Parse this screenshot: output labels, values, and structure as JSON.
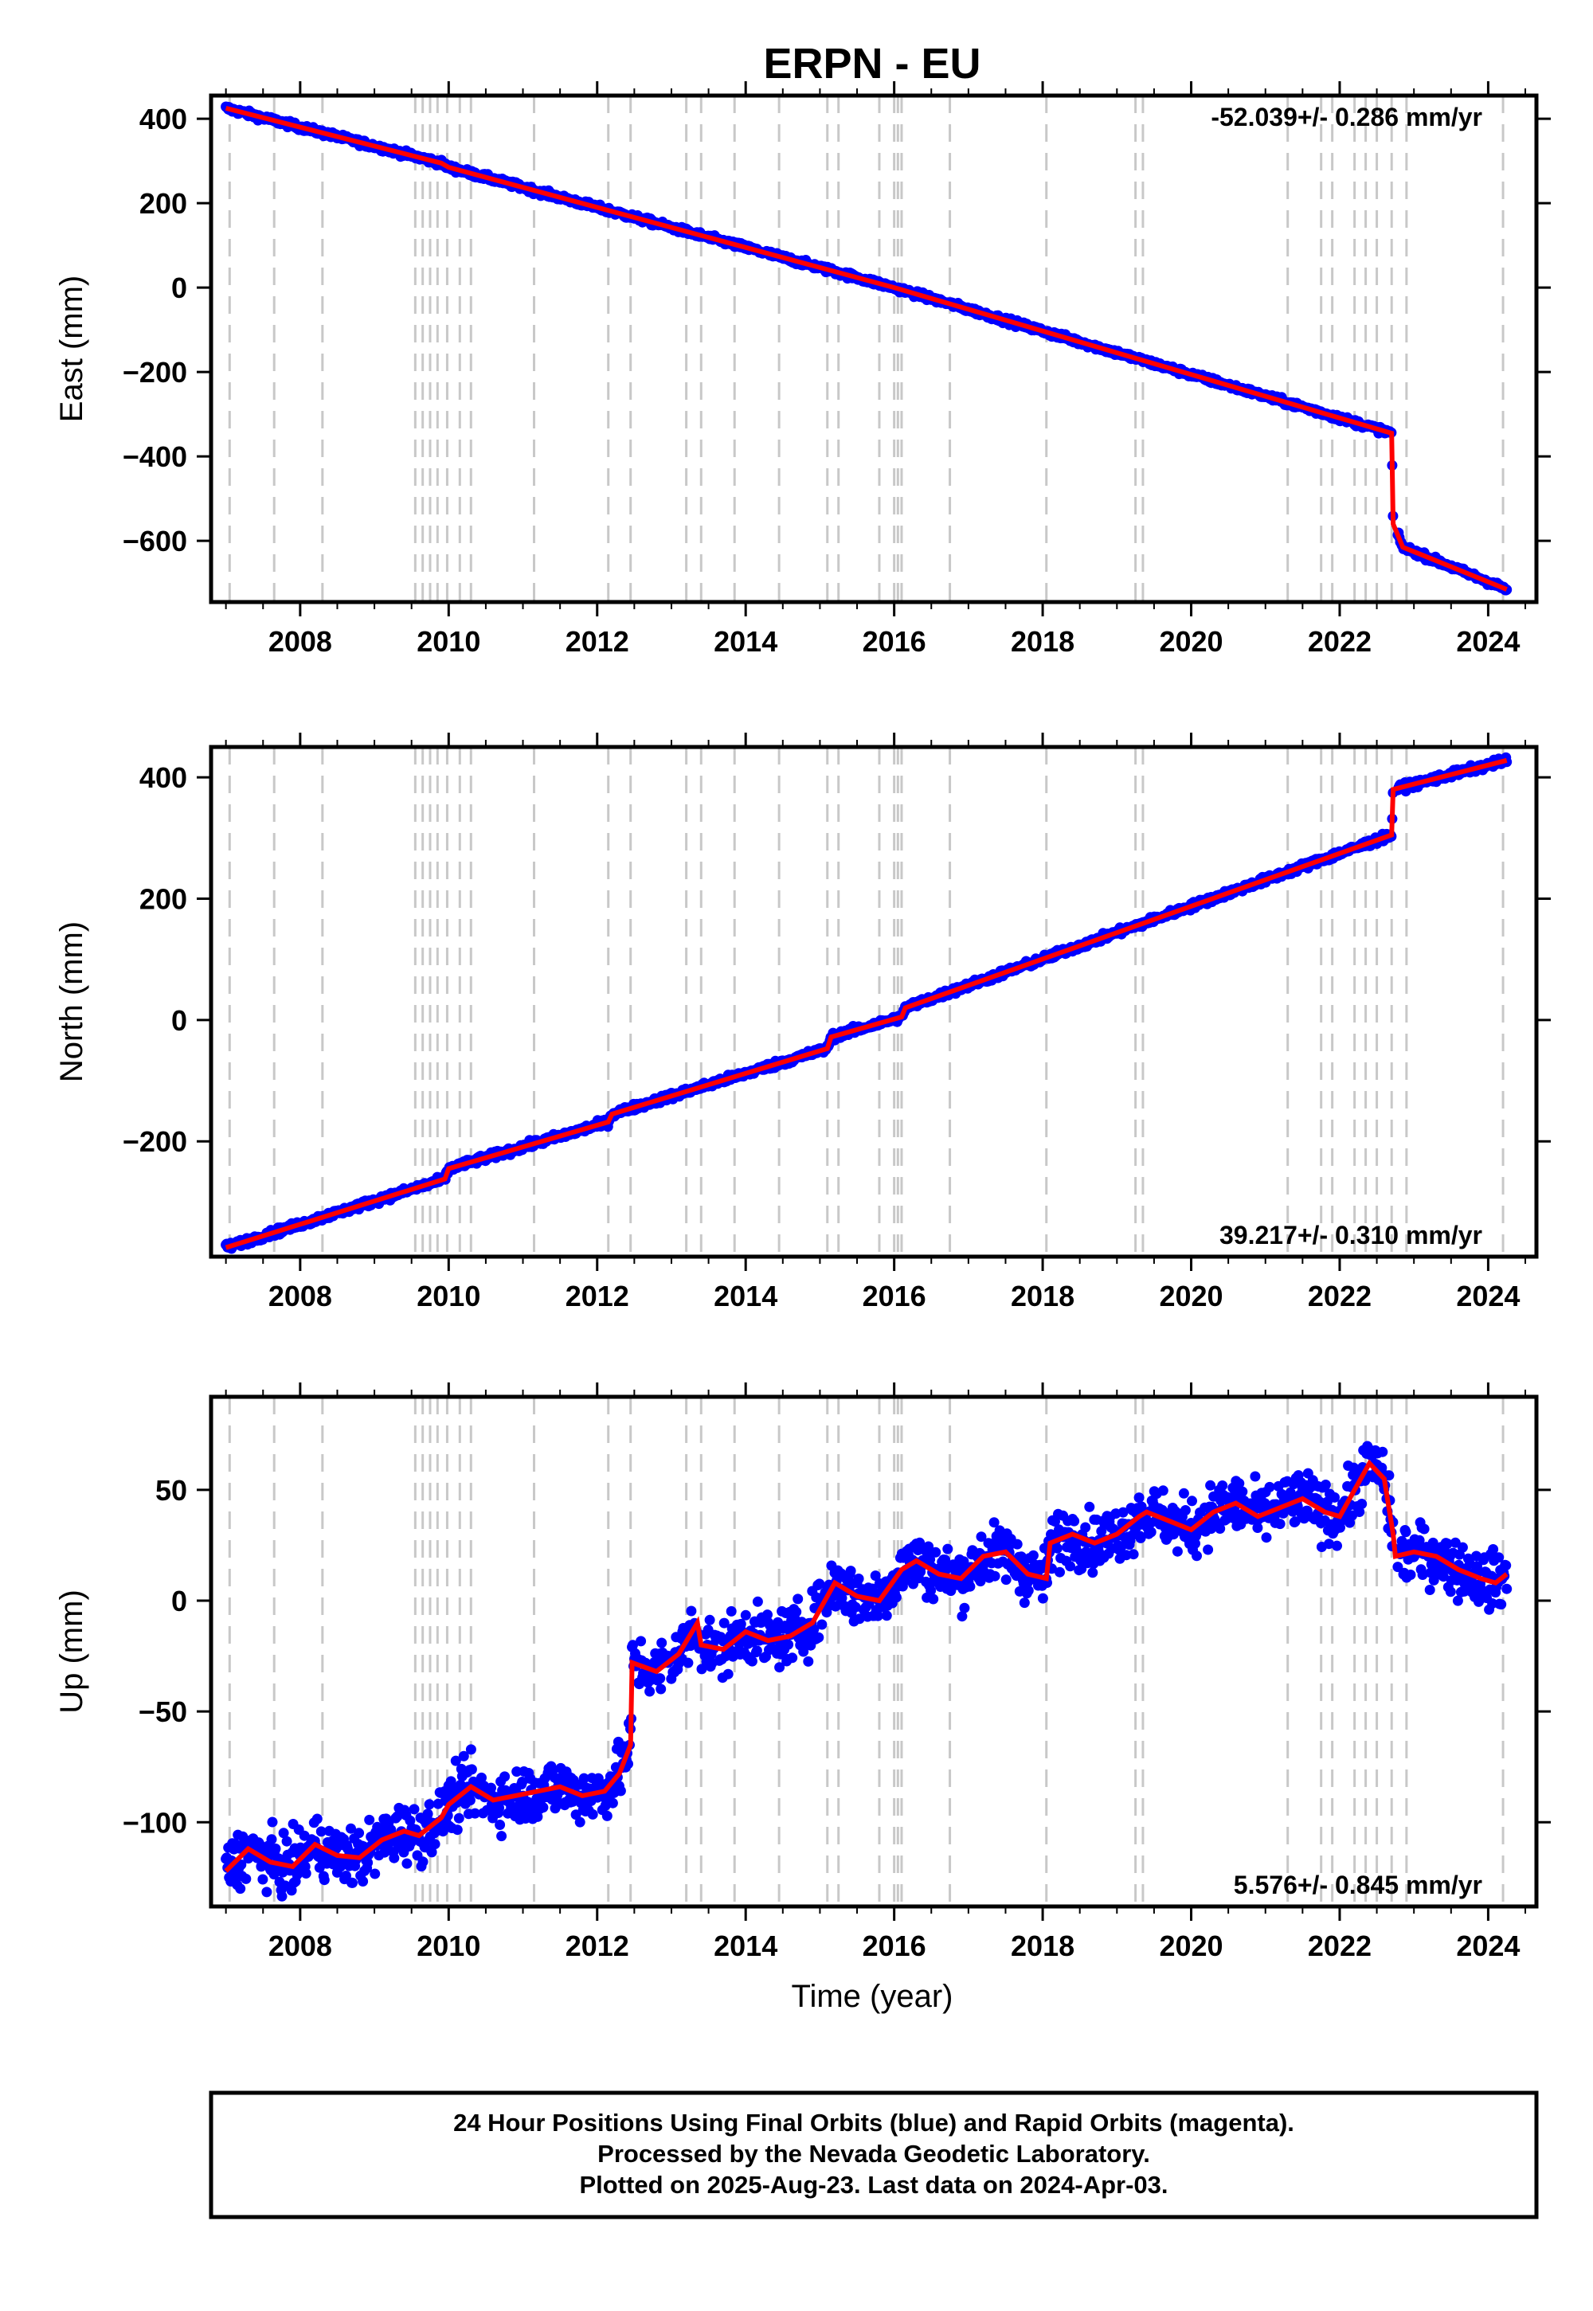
{
  "title": "ERPN - EU",
  "colors": {
    "final_orbits": "#0000ff",
    "model": "#ff0000",
    "events": "#c8c8c8",
    "frame": "#000000"
  },
  "chart_data": [
    {
      "type": "scatter",
      "panel": "east",
      "ylabel": "East (mm)",
      "xlabel": "",
      "xlim": [
        2006.8,
        2024.65
      ],
      "ylim": [
        -745,
        455
      ],
      "x_ticks": [
        2008,
        2010,
        2012,
        2014,
        2016,
        2018,
        2020,
        2022,
        2024
      ],
      "y_ticks": [
        400,
        200,
        0,
        -200,
        -400,
        -600
      ],
      "y_tick_labels": [
        "400",
        "200",
        "0",
        "−200",
        "−400",
        "−600"
      ],
      "rate_label": "-52.039+/- 0.286 mm/yr",
      "rate_label_position": "top-right",
      "series": [
        {
          "marker": "points",
          "color": "#0000ff",
          "x_range": [
            2007.0,
            2024.25
          ],
          "scatter_mm": 5
        },
        {
          "marker": "line",
          "color": "#ff0000",
          "x": [
            2007.0,
            2009.9,
            2010.0,
            2016.0,
            2022.7,
            2022.72,
            2022.85,
            2024.25
          ],
          "y": [
            425,
            295,
            285,
            0,
            -345,
            -560,
            -615,
            -715
          ]
        }
      ]
    },
    {
      "type": "scatter",
      "panel": "north",
      "ylabel": "North (mm)",
      "xlabel": "",
      "xlim": [
        2006.8,
        2024.65
      ],
      "ylim": [
        -390,
        450
      ],
      "x_ticks": [
        2008,
        2010,
        2012,
        2014,
        2016,
        2018,
        2020,
        2022,
        2024
      ],
      "y_ticks": [
        400,
        200,
        0,
        -200
      ],
      "y_tick_labels": [
        "400",
        "200",
        "0",
        "−200"
      ],
      "rate_label": "39.217+/- 0.310 mm/yr",
      "rate_label_position": "bottom-right",
      "series": [
        {
          "marker": "points",
          "color": "#0000ff",
          "x_range": [
            2007.0,
            2024.25
          ],
          "scatter_mm": 4
        },
        {
          "marker": "line",
          "color": "#ff0000",
          "x": [
            2007.0,
            2009.95,
            2010.0,
            2012.15,
            2012.2,
            2015.1,
            2015.15,
            2016.1,
            2016.15,
            2022.7,
            2022.72,
            2024.25
          ],
          "y": [
            -375,
            -262,
            -245,
            -168,
            -155,
            -47,
            -28,
            5,
            20,
            305,
            380,
            428
          ]
        }
      ]
    },
    {
      "type": "scatter",
      "panel": "up",
      "ylabel": "Up (mm)",
      "xlabel": "Time (year)",
      "xlim": [
        2006.8,
        2024.65
      ],
      "ylim": [
        -138,
        92
      ],
      "x_ticks": [
        2008,
        2010,
        2012,
        2014,
        2016,
        2018,
        2020,
        2022,
        2024
      ],
      "y_ticks": [
        50,
        0,
        -50,
        -100
      ],
      "y_tick_labels": [
        "50",
        "0",
        "−50",
        "−100"
      ],
      "rate_label": "5.576+/- 0.845 mm/yr",
      "rate_label_position": "bottom-right",
      "series": [
        {
          "marker": "points",
          "color": "#0000ff",
          "x_range": [
            2007.0,
            2024.25
          ],
          "scatter_mm": 9
        },
        {
          "marker": "line",
          "color": "#ff0000",
          "x": [
            2007.0,
            2007.3,
            2007.6,
            2007.9,
            2008.2,
            2008.5,
            2008.8,
            2009.1,
            2009.4,
            2009.6,
            2009.9,
            2010.0,
            2010.3,
            2010.6,
            2010.9,
            2011.2,
            2011.5,
            2011.8,
            2012.1,
            2012.3,
            2012.45,
            2012.47,
            2012.8,
            2013.1,
            2013.35,
            2013.4,
            2013.7,
            2014.0,
            2014.3,
            2014.6,
            2014.9,
            2015.1,
            2015.2,
            2015.5,
            2015.8,
            2016.1,
            2016.3,
            2016.6,
            2016.9,
            2017.2,
            2017.5,
            2017.8,
            2018.05,
            2018.1,
            2018.4,
            2018.7,
            2019.0,
            2019.3,
            2019.4,
            2019.7,
            2020.0,
            2020.3,
            2020.6,
            2020.9,
            2021.2,
            2021.5,
            2021.8,
            2022.0,
            2022.2,
            2022.4,
            2022.6,
            2022.72,
            2022.75,
            2023.0,
            2023.3,
            2023.6,
            2023.9,
            2024.1,
            2024.25
          ],
          "y": [
            -122,
            -112,
            -118,
            -120,
            -110,
            -115,
            -116,
            -108,
            -104,
            -106,
            -98,
            -92,
            -84,
            -90,
            -88,
            -86,
            -84,
            -88,
            -86,
            -78,
            -65,
            -28,
            -32,
            -24,
            -10,
            -20,
            -22,
            -14,
            -18,
            -16,
            -10,
            2,
            8,
            2,
            0,
            14,
            18,
            12,
            10,
            20,
            22,
            12,
            10,
            26,
            30,
            26,
            30,
            38,
            40,
            36,
            32,
            40,
            44,
            38,
            42,
            46,
            40,
            38,
            50,
            62,
            55,
            30,
            20,
            22,
            20,
            14,
            10,
            8,
            12
          ]
        }
      ]
    }
  ],
  "event_lines": [
    2007.05,
    2007.65,
    2008.3,
    2009.55,
    2009.65,
    2009.75,
    2009.85,
    2009.98,
    2010.15,
    2010.3,
    2011.15,
    2012.15,
    2012.45,
    2013.2,
    2013.4,
    2013.85,
    2014.45,
    2015.1,
    2015.25,
    2015.8,
    2016.0,
    2016.05,
    2016.1,
    2016.75,
    2018.05,
    2019.25,
    2019.35,
    2021.3,
    2021.75,
    2021.9,
    2022.2,
    2022.35,
    2022.5,
    2022.7,
    2022.9,
    2024.2
  ],
  "footer": {
    "line1": "24 Hour Positions Using Final Orbits (blue) and Rapid Orbits (magenta).",
    "line2": "Processed by the Nevada Geodetic Laboratory.",
    "line3": "Plotted on 2025-Aug-23. Last data on 2024-Apr-03."
  }
}
